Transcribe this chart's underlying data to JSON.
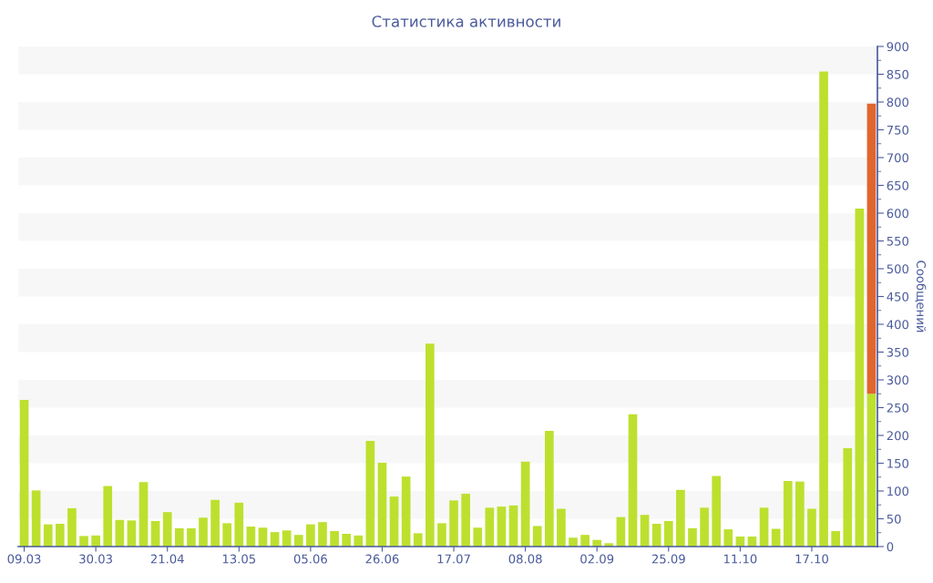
{
  "chart_data": {
    "type": "bar",
    "title": "Статистика активности",
    "ylabel": "Сообщений",
    "categories": [
      "09.03",
      null,
      null,
      null,
      null,
      null,
      "30.03",
      null,
      null,
      null,
      null,
      null,
      "21.04",
      null,
      null,
      null,
      null,
      null,
      "13.05",
      null,
      null,
      null,
      null,
      null,
      "05.06",
      null,
      null,
      null,
      null,
      null,
      "26.06",
      null,
      null,
      null,
      null,
      null,
      "17.07",
      null,
      null,
      null,
      null,
      null,
      "08.08",
      null,
      null,
      null,
      null,
      null,
      "02.09",
      null,
      null,
      null,
      null,
      null,
      "25.09",
      null,
      null,
      null,
      null,
      null,
      "11.10",
      null,
      null,
      null,
      null,
      null,
      "17.10",
      null,
      null,
      null,
      null,
      null
    ],
    "series": [
      {
        "color": "#bde02f",
        "values": [
          264,
          101,
          40,
          41,
          69,
          19,
          20,
          109,
          48,
          47,
          116,
          46,
          62,
          33,
          33,
          52,
          84,
          42,
          79,
          36,
          34,
          26,
          29,
          21,
          40,
          44,
          28,
          23,
          20,
          190,
          151,
          90,
          126,
          24,
          365,
          42,
          83,
          95,
          34,
          70,
          72,
          74,
          153,
          37,
          208,
          68,
          16,
          21,
          12,
          6,
          53,
          238,
          57,
          41,
          46,
          102,
          33,
          70,
          127,
          31,
          18,
          18,
          70,
          32,
          118,
          117,
          68,
          855,
          28,
          177,
          608,
          275
        ]
      },
      {
        "color": "#e0662f",
        "values": [
          null,
          null,
          null,
          null,
          null,
          null,
          null,
          null,
          null,
          null,
          null,
          null,
          null,
          null,
          null,
          null,
          null,
          null,
          null,
          null,
          null,
          null,
          null,
          null,
          null,
          null,
          null,
          null,
          null,
          null,
          null,
          null,
          null,
          null,
          null,
          null,
          null,
          null,
          null,
          null,
          null,
          null,
          null,
          null,
          null,
          null,
          null,
          null,
          null,
          null,
          null,
          null,
          null,
          null,
          null,
          null,
          null,
          null,
          null,
          null,
          null,
          null,
          null,
          null,
          null,
          null,
          null,
          null,
          null,
          null,
          null,
          522
        ]
      }
    ],
    "stacked": true,
    "ylim": [
      0,
      900
    ],
    "yticks": [
      0,
      50,
      100,
      150,
      200,
      250,
      300,
      350,
      400,
      450,
      500,
      550,
      600,
      650,
      700,
      750,
      800,
      850,
      900
    ],
    "bands": [
      {
        "axis": "y",
        "from": 50,
        "to": 100,
        "color": "#f7f7f7"
      },
      {
        "axis": "y",
        "from": 150,
        "to": 200,
        "color": "#f7f7f7"
      },
      {
        "axis": "y",
        "from": 250,
        "to": 300,
        "color": "#f7f7f7"
      },
      {
        "axis": "y",
        "from": 350,
        "to": 400,
        "color": "#f7f7f7"
      },
      {
        "axis": "y",
        "from": 450,
        "to": 500,
        "color": "#f7f7f7"
      },
      {
        "axis": "y",
        "from": 550,
        "to": 600,
        "color": "#f7f7f7"
      },
      {
        "axis": "y",
        "from": 650,
        "to": 700,
        "color": "#f7f7f7"
      },
      {
        "axis": "y",
        "from": 750,
        "to": 800,
        "color": "#f7f7f7"
      },
      {
        "axis": "y",
        "from": 850,
        "to": 900,
        "color": "#f7f7f7"
      }
    ]
  }
}
